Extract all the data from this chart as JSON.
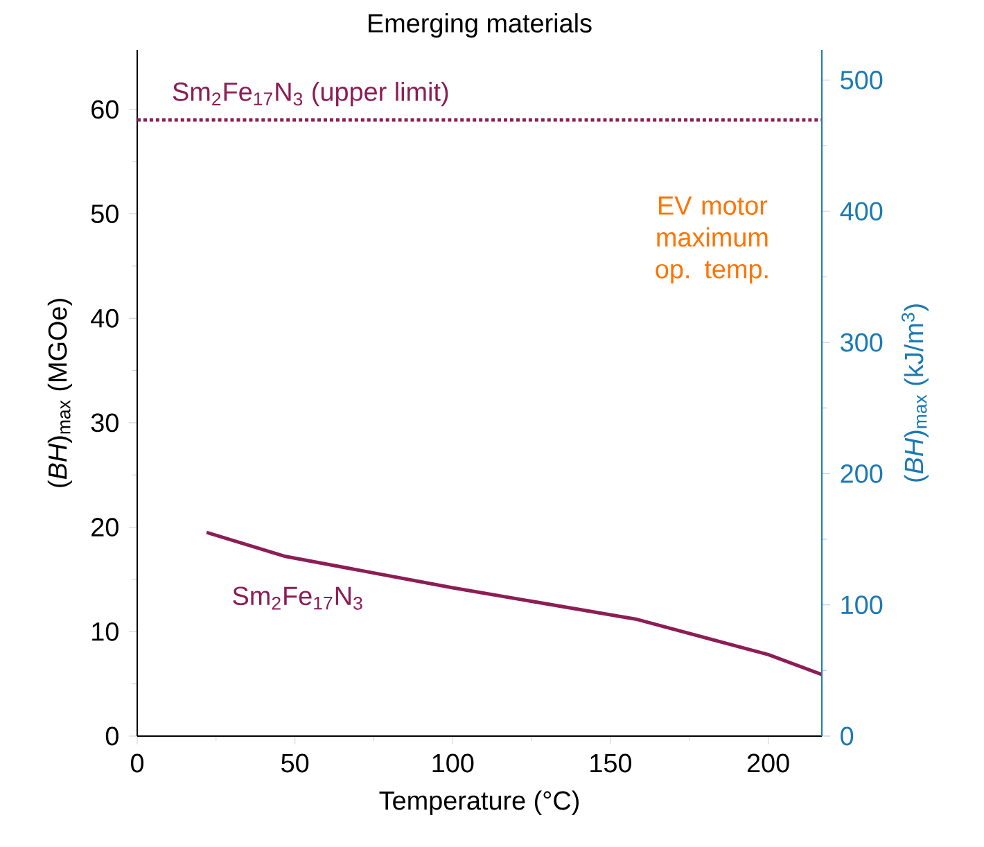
{
  "chart_data": {
    "type": "line",
    "title": "Emerging materials",
    "xlabel": "Temperature (°C)",
    "ylabel": "(*BH*)$_{max}$ (MGOe)",
    "y2label": "(*BH*)$_{max}$ (kJ/m$^{3}$)",
    "x": [
      22,
      47,
      100,
      158,
      200,
      217
    ],
    "series": [
      {
        "name": "Sm$_{2}$Fe$_{17}$N$_{3}$",
        "color": "#8c1d55",
        "values": [
          19.5,
          17.2,
          14.2,
          11.2,
          7.8,
          5.9
        ]
      }
    ],
    "xlim": [
      0,
      217
    ],
    "xticks": [
      0,
      50,
      100,
      150,
      200
    ],
    "ylim": [
      0,
      65.7
    ],
    "yticks": [
      0,
      10,
      20,
      30,
      40,
      50,
      60
    ],
    "y2lim": [
      0,
      523
    ],
    "y2ticks": [
      0,
      100,
      200,
      300,
      400,
      500
    ],
    "ref_lines": [
      {
        "axis": "y",
        "value": 59,
        "label": "Sm$_{2}$Fe$_{17}$N$_{3}$ (upper limit)",
        "color": "#8c1d55",
        "line_style": "dotted"
      }
    ],
    "annotations": [
      "EV motor maximum op. temp."
    ],
    "grid": false,
    "legend": false,
    "marker": "none",
    "line_style": "solid"
  }
}
